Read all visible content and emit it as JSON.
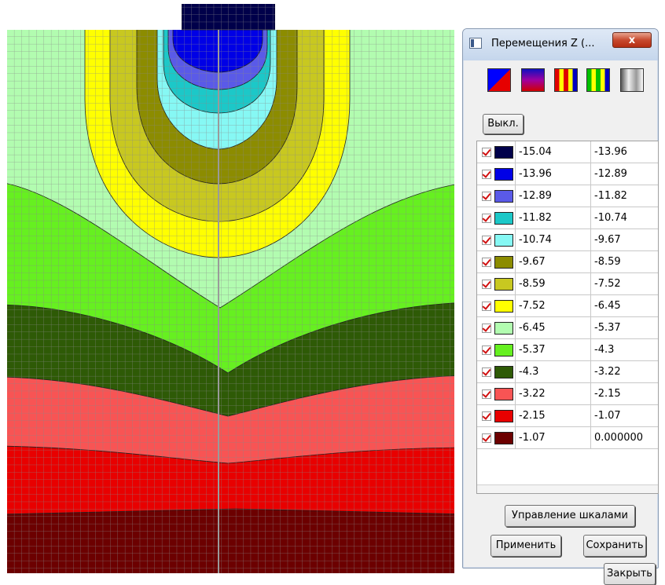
{
  "window": {
    "title": "Перемещения Z (...",
    "close_glyph": "x"
  },
  "toolbar": {
    "palettes": [
      "palette-diagonal-icon",
      "palette-gradient-icon",
      "palette-red-yellow-icon",
      "palette-green-yellow-icon",
      "palette-gray-icon"
    ]
  },
  "buttons": {
    "off": "Выкл.",
    "manage_scales": "Управление шкалами",
    "apply": "Применить",
    "save": "Сохранить",
    "close": "Закрыть"
  },
  "scale": [
    {
      "from": "-15.04",
      "to": "-13.96",
      "color": "#00004a"
    },
    {
      "from": "-13.96",
      "to": "-12.89",
      "color": "#0000e6"
    },
    {
      "from": "-12.89",
      "to": "-11.82",
      "color": "#5a5ae8"
    },
    {
      "from": "-11.82",
      "to": "-10.74",
      "color": "#1cc8c8"
    },
    {
      "from": "-10.74",
      "to": "-9.67",
      "color": "#86f8f4"
    },
    {
      "from": "-9.67",
      "to": "-8.59",
      "color": "#8c8c00"
    },
    {
      "from": "-8.59",
      "to": "-7.52",
      "color": "#c8c820"
    },
    {
      "from": "-7.52",
      "to": "-6.45",
      "color": "#ffff00"
    },
    {
      "from": "-6.45",
      "to": "-5.37",
      "color": "#b2fcb0"
    },
    {
      "from": "-5.37",
      "to": "-4.3",
      "color": "#66f020"
    },
    {
      "from": "-4.3",
      "to": "-3.22",
      "color": "#2e5a06"
    },
    {
      "from": "-3.22",
      "to": "-2.15",
      "color": "#f85454"
    },
    {
      "from": "-2.15",
      "to": "-1.07",
      "color": "#e80000"
    },
    {
      "from": "-1.07",
      "to": "0.000000",
      "color": "#6c0000"
    }
  ],
  "plot": {
    "grid_color": "#888888",
    "center_line_color": "#9a9a9a"
  }
}
